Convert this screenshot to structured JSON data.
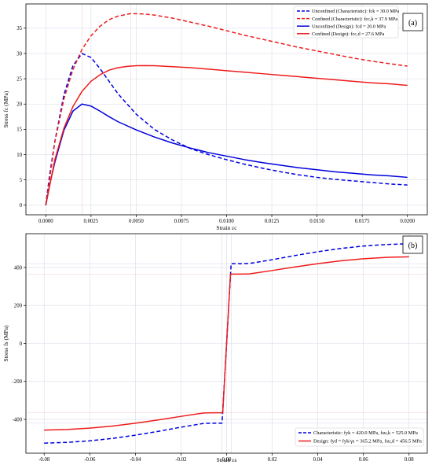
{
  "chart_data": [
    {
      "panel_label": "(a)",
      "type": "line",
      "xlabel": "Strain εc",
      "ylabel": "Stress fc (MPa)",
      "xlim": [
        -0.0011,
        0.0211
      ],
      "ylim": [
        -1.9,
        39.8
      ],
      "xticks": [
        0.0,
        0.0025,
        0.005,
        0.0075,
        0.01,
        0.0125,
        0.015,
        0.0175,
        0.02
      ],
      "xtick_labels": [
        "0.0000",
        "0.0025",
        "0.0050",
        "0.0075",
        "0.0100",
        "0.0125",
        "0.0150",
        "0.0175",
        "0.0200"
      ],
      "yticks": [
        0,
        5,
        10,
        15,
        20,
        25,
        30,
        35
      ],
      "ytick_labels": [
        "0",
        "5",
        "10",
        "15",
        "20",
        "25",
        "30",
        "35"
      ],
      "grid": true,
      "legend_position": "top-right",
      "series": [
        {
          "name": "Unconfined (Characteristic): fck = 30.0 MPa",
          "color": "#0000dd",
          "dash": "dashed",
          "x": [
            0,
            0.0002,
            0.0005,
            0.001,
            0.0015,
            0.002,
            0.0025,
            0.003,
            0.0035,
            0.004,
            0.005,
            0.006,
            0.007,
            0.008,
            0.009,
            0.01,
            0.011,
            0.012,
            0.013,
            0.014,
            0.015,
            0.016,
            0.017,
            0.018,
            0.019,
            0.02
          ],
          "y": [
            0,
            5.7,
            12.6,
            21.8,
            27.6,
            30.0,
            29.2,
            27.0,
            24.5,
            22.0,
            18.0,
            15.0,
            12.9,
            11.2,
            10.0,
            9.0,
            8.1,
            7.3,
            6.6,
            6.0,
            5.5,
            5.1,
            4.8,
            4.5,
            4.2,
            4.0
          ]
        },
        {
          "name": "Confined (Characteristic): fcc,k = 37.9 MPa",
          "color": "#ee1c1c",
          "dash": "dashed",
          "x": [
            0,
            0.0005,
            0.001,
            0.0015,
            0.002,
            0.0025,
            0.003,
            0.0035,
            0.004,
            0.0047,
            0.0055,
            0.006,
            0.007,
            0.008,
            0.009,
            0.01,
            0.011,
            0.012,
            0.013,
            0.014,
            0.015,
            0.016,
            0.017,
            0.018,
            0.019,
            0.02
          ],
          "y": [
            0,
            12.5,
            21.0,
            26.8,
            30.8,
            33.5,
            35.4,
            36.7,
            37.4,
            37.9,
            37.8,
            37.6,
            37.0,
            36.2,
            35.4,
            34.5,
            33.6,
            32.8,
            32.0,
            31.2,
            30.5,
            29.8,
            29.1,
            28.5,
            28.0,
            27.5
          ]
        },
        {
          "name": "Unconfined (Design): fcd = 20.0 MPa",
          "color": "#0000dd",
          "dash": "solid",
          "x": [
            0,
            0.0002,
            0.0005,
            0.001,
            0.0015,
            0.002,
            0.0025,
            0.003,
            0.0035,
            0.004,
            0.005,
            0.006,
            0.007,
            0.008,
            0.009,
            0.01,
            0.011,
            0.012,
            0.013,
            0.014,
            0.015,
            0.016,
            0.017,
            0.018,
            0.019,
            0.02
          ],
          "y": [
            0,
            3.8,
            8.5,
            14.8,
            18.6,
            20.0,
            19.6,
            18.6,
            17.5,
            16.5,
            14.9,
            13.5,
            12.3,
            11.3,
            10.4,
            9.7,
            9.0,
            8.4,
            7.9,
            7.4,
            7.0,
            6.6,
            6.3,
            6.0,
            5.8,
            5.5
          ]
        },
        {
          "name": "Confined (Design): fcc,d = 27.6 MPa",
          "color": "#ee1c1c",
          "dash": "solid",
          "x": [
            0,
            0.0005,
            0.001,
            0.0015,
            0.002,
            0.0025,
            0.003,
            0.0035,
            0.004,
            0.0045,
            0.005,
            0.0055,
            0.006,
            0.007,
            0.008,
            0.009,
            0.01,
            0.011,
            0.012,
            0.013,
            0.014,
            0.015,
            0.016,
            0.017,
            0.018,
            0.019,
            0.02
          ],
          "y": [
            0,
            9.0,
            15.2,
            19.5,
            22.5,
            24.5,
            25.8,
            26.7,
            27.2,
            27.45,
            27.58,
            27.6,
            27.58,
            27.4,
            27.2,
            26.9,
            26.6,
            26.3,
            26.0,
            25.7,
            25.4,
            25.1,
            24.8,
            24.5,
            24.2,
            24.0,
            23.7
          ]
        }
      ]
    },
    {
      "panel_label": "(b)",
      "type": "line",
      "xlabel": "Strain εs",
      "ylabel": "Stress fs (MPa)",
      "xlim": [
        -0.088,
        0.088
      ],
      "ylim": [
        -578,
        578
      ],
      "xticks": [
        -0.08,
        -0.06,
        -0.04,
        -0.02,
        0.0,
        0.02,
        0.04,
        0.06,
        0.08
      ],
      "xtick_labels": [
        "-0.08",
        "-0.06",
        "-0.04",
        "-0.02",
        "0.00",
        "0.02",
        "0.04",
        "0.06",
        "0.08"
      ],
      "yticks": [
        -400,
        -200,
        0,
        200,
        400
      ],
      "ytick_labels": [
        "-400",
        "-200",
        "0",
        "200",
        "400"
      ],
      "grid": true,
      "legend_position": "bottom-right",
      "series": [
        {
          "name": "Characteristic: fyk = 420.0 MPa, fsu,k = 525.0 MPa",
          "color": "#0000dd",
          "dash": "dashed",
          "x": [
            -0.08,
            -0.07,
            -0.06,
            -0.05,
            -0.04,
            -0.03,
            -0.02,
            -0.01,
            -0.006,
            -0.002,
            0.002,
            0.006,
            0.01,
            0.02,
            0.03,
            0.04,
            0.05,
            0.06,
            0.07,
            0.08
          ],
          "y": [
            -525,
            -521,
            -513,
            -500,
            -483,
            -463,
            -441,
            -421,
            -420,
            -420,
            420,
            420,
            421,
            441,
            463,
            483,
            500,
            513,
            521,
            525
          ]
        },
        {
          "name": "Design: fyd = fyk/γs = 365.2 MPa, fsu,d = 456.5 MPa",
          "color": "#ee1c1c",
          "dash": "solid",
          "x": [
            -0.08,
            -0.07,
            -0.06,
            -0.05,
            -0.04,
            -0.03,
            -0.02,
            -0.01,
            -0.006,
            -0.0017,
            0.0017,
            0.006,
            0.01,
            0.02,
            0.03,
            0.04,
            0.05,
            0.06,
            0.07,
            0.08
          ],
          "y": [
            -456.5,
            -453,
            -446,
            -435,
            -420,
            -403,
            -384,
            -366,
            -365.2,
            -365.2,
            365.2,
            365.2,
            366,
            384,
            403,
            420,
            435,
            446,
            453,
            456.5
          ]
        }
      ]
    }
  ]
}
